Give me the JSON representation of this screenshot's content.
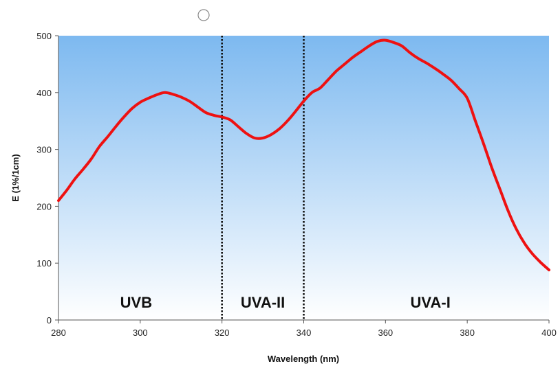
{
  "chart_data": {
    "type": "line",
    "xlabel": "Wavelength (nm)",
    "ylabel": "E (1%/1cm)",
    "xlim": [
      280,
      400
    ],
    "ylim": [
      0,
      500
    ],
    "x_ticks": [
      {
        "value": 280,
        "label": "280"
      },
      {
        "value": 300,
        "label": "300"
      },
      {
        "value": 320,
        "label": "320"
      },
      {
        "value": 340,
        "label": "340"
      },
      {
        "value": 360,
        "label": "360"
      },
      {
        "value": 380,
        "label": "380"
      },
      {
        "value": 400,
        "label": "400"
      }
    ],
    "y_ticks": [
      {
        "value": 0,
        "label": "0"
      },
      {
        "value": 100,
        "label": "100"
      },
      {
        "value": 200,
        "label": "200"
      },
      {
        "value": 300,
        "label": "300"
      },
      {
        "value": 400,
        "label": "400"
      },
      {
        "value": 500,
        "label": "500"
      }
    ],
    "series": [
      {
        "color": "#ee1111",
        "x": [
          280,
          282,
          284,
          286,
          288,
          290,
          292,
          294,
          296,
          298,
          300,
          302,
          304,
          306,
          308,
          310,
          312,
          314,
          316,
          318,
          320,
          322,
          324,
          326,
          328,
          330,
          332,
          334,
          336,
          338,
          340,
          342,
          344,
          346,
          348,
          350,
          352,
          354,
          356,
          358,
          360,
          362,
          364,
          366,
          368,
          370,
          372,
          374,
          376,
          378,
          380,
          382,
          384,
          386,
          388,
          390,
          392,
          394,
          396,
          398,
          400
        ],
        "y": [
          210,
          228,
          248,
          265,
          283,
          305,
          322,
          340,
          357,
          372,
          383,
          390,
          396,
          400,
          397,
          392,
          385,
          375,
          365,
          360,
          357,
          352,
          340,
          328,
          320,
          320,
          326,
          336,
          350,
          367,
          385,
          400,
          408,
          423,
          438,
          450,
          462,
          472,
          482,
          490,
          492,
          488,
          482,
          470,
          460,
          452,
          443,
          433,
          422,
          407,
          390,
          350,
          310,
          268,
          230,
          192,
          160,
          135,
          116,
          101,
          88
        ]
      }
    ],
    "dividers": [
      320,
      340
    ],
    "regions": [
      {
        "label": "UVB",
        "x": 299
      },
      {
        "label": "UVA-II",
        "x": 330
      },
      {
        "label": "UVA-I",
        "x": 371
      }
    ],
    "background_gradient": {
      "top": "#7db9f0",
      "bottom": "#ffffff"
    }
  }
}
